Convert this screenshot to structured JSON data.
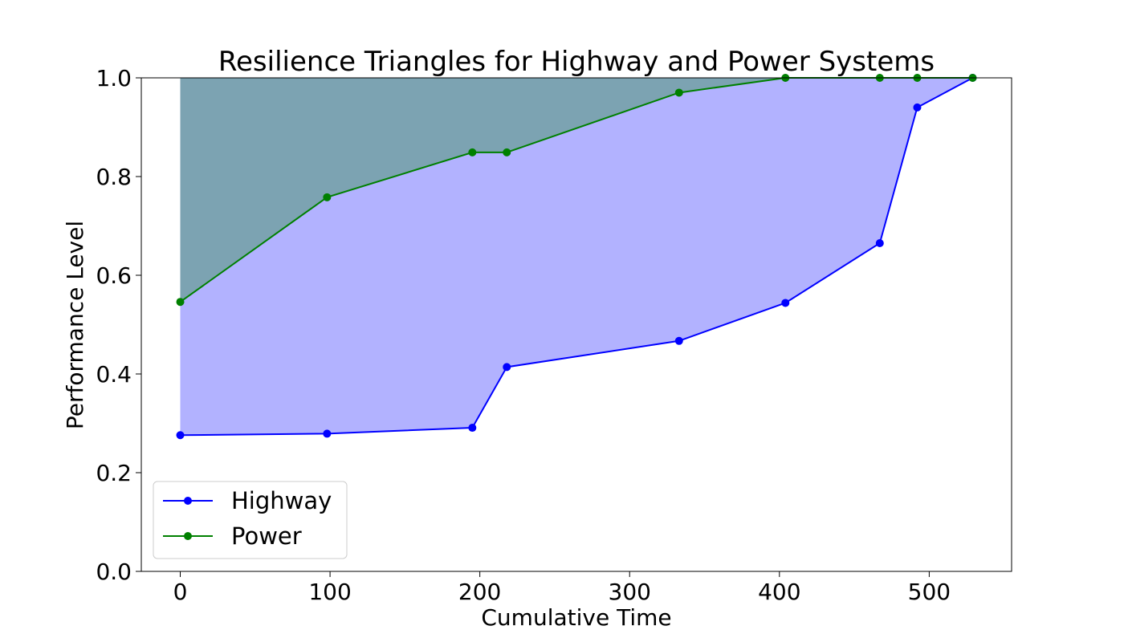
{
  "chart_data": {
    "type": "area",
    "title": "Resilience Triangles for Highway and Power Systems",
    "xlabel": "Cumulative Time",
    "ylabel": "Performance Level",
    "xlim": [
      -26,
      555
    ],
    "ylim": [
      0,
      1.0
    ],
    "x_ticks": [
      0,
      100,
      200,
      300,
      400,
      500
    ],
    "x_tick_labels": [
      "0",
      "100",
      "200",
      "300",
      "400",
      "500"
    ],
    "y_ticks": [
      0,
      0.2,
      0.4,
      0.6,
      0.8,
      1.0
    ],
    "y_tick_labels": [
      "0.0",
      "0.2",
      "0.4",
      "0.6",
      "0.8",
      "1.0"
    ],
    "grid": false,
    "legend_position": "lower-left",
    "series": [
      {
        "name": "Highway",
        "color": "#0000ff",
        "fill_color": "#0000ff",
        "fill_opacity": 0.3,
        "x": [
          0,
          98,
          195,
          218,
          333,
          404,
          467,
          492,
          529
        ],
        "y": [
          0.276,
          0.279,
          0.291,
          0.414,
          0.467,
          0.544,
          0.665,
          0.94,
          1.0
        ]
      },
      {
        "name": "Power",
        "color": "#008000",
        "fill_color": "#008000",
        "fill_opacity": 0.3,
        "x": [
          0,
          98,
          195,
          218,
          333,
          404,
          467,
          492,
          529
        ],
        "y": [
          0.546,
          0.758,
          0.849,
          0.849,
          0.97,
          1.0,
          1.0,
          1.0,
          1.0
        ]
      }
    ]
  }
}
